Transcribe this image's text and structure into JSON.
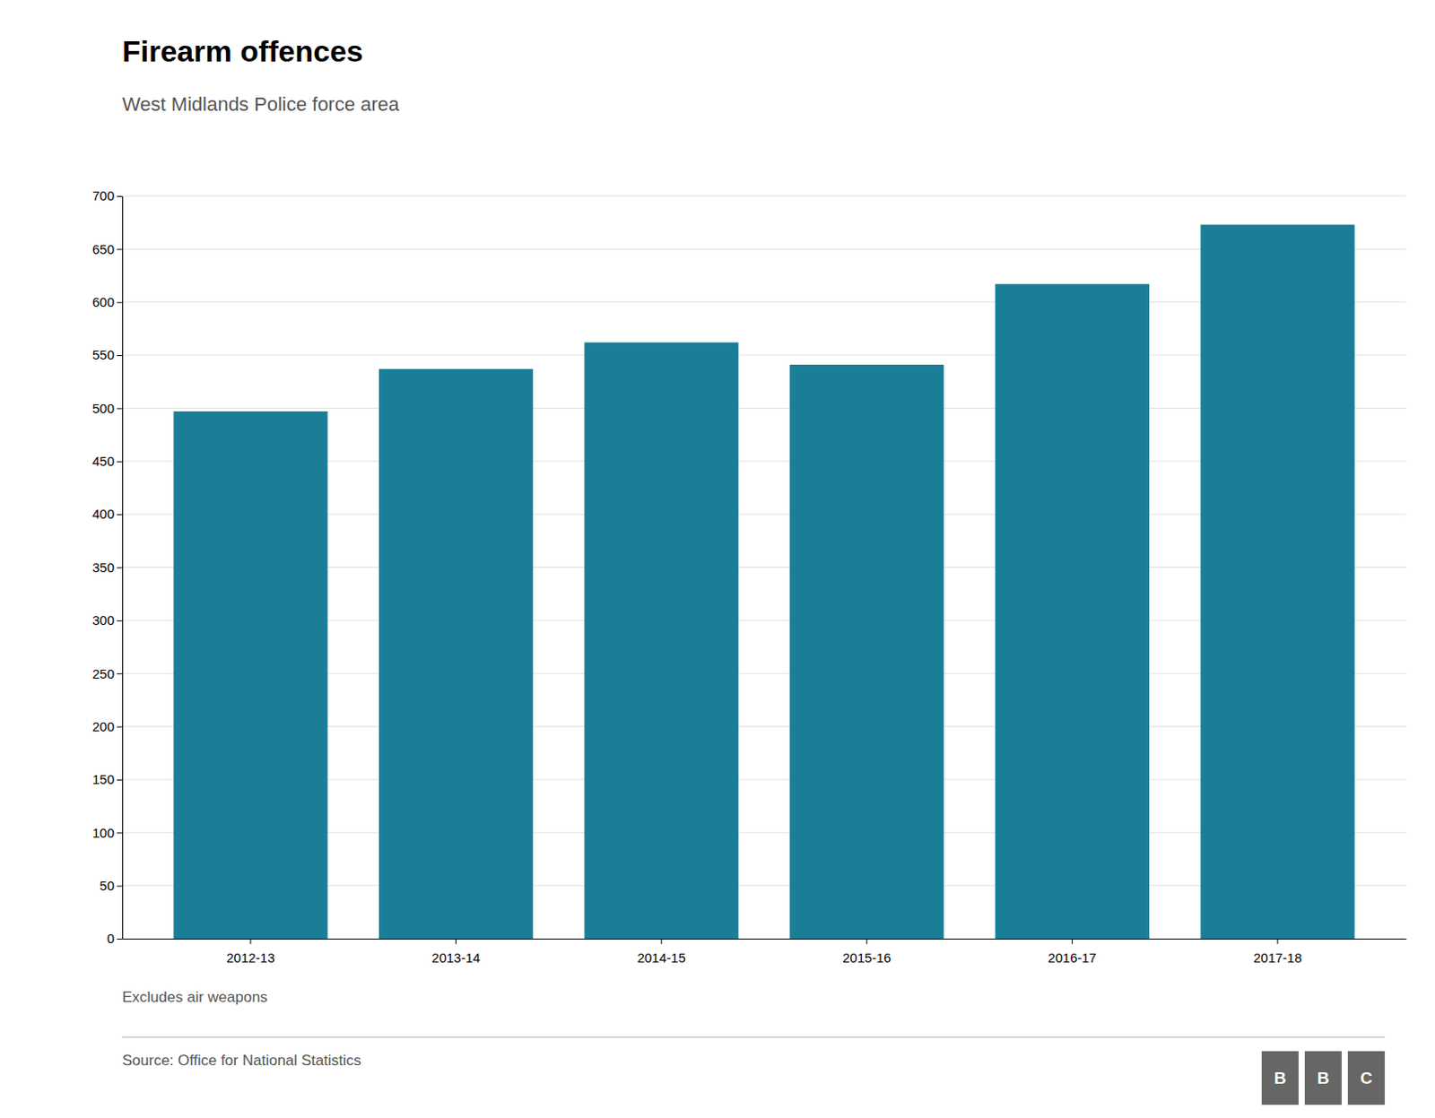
{
  "chart_data": {
    "type": "bar",
    "title": "Firearm offences",
    "subtitle": "West Midlands Police force area",
    "categories": [
      "2012-13",
      "2013-14",
      "2014-15",
      "2015-16",
      "2016-17",
      "2017-18"
    ],
    "values": [
      497,
      537,
      562,
      541,
      617,
      673
    ],
    "color": "#1a7f96",
    "ylim": [
      0,
      700
    ],
    "yticks": [
      0,
      50,
      100,
      150,
      200,
      250,
      300,
      350,
      400,
      450,
      500,
      550,
      600,
      650,
      700
    ],
    "grid": true,
    "annotations": [
      "Excludes air weapons",
      "Source: Office for National Statistics",
      "BBC"
    ]
  }
}
